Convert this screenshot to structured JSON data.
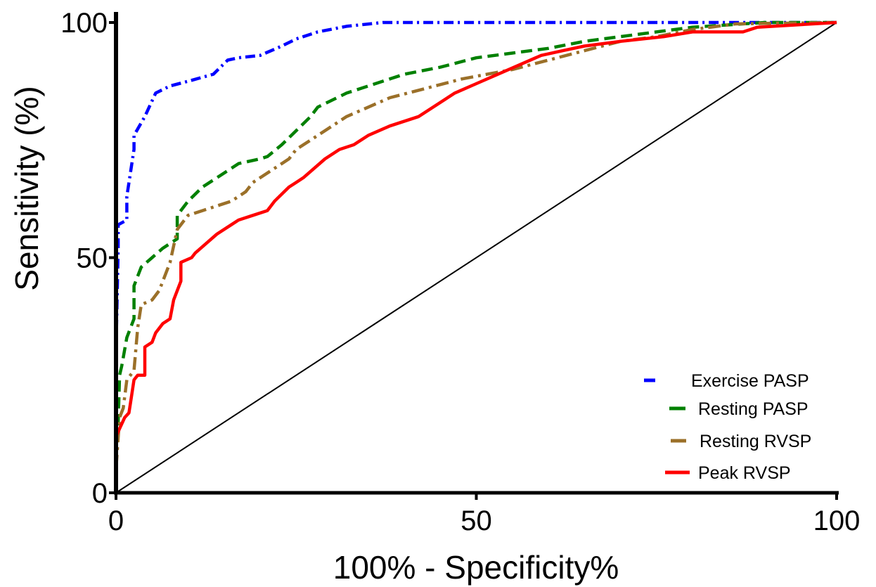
{
  "chart_data": {
    "type": "line",
    "title": "",
    "xlabel": "100% - Specificity%",
    "ylabel": "Sensitivity (%)",
    "xlim": [
      0,
      100
    ],
    "ylim": [
      0,
      100
    ],
    "x_ticks": [
      "0",
      "50",
      "100"
    ],
    "y_ticks": [
      "0",
      "50",
      "100"
    ],
    "grid": false,
    "legend_position": "bottom-right",
    "reference_line": {
      "x": [
        0,
        100
      ],
      "y": [
        0,
        100
      ],
      "color": "#000000"
    },
    "series": [
      {
        "name": "Exercise PASP",
        "color": "#0000ff",
        "style": "dash-dot",
        "x": [
          0,
          0,
          0.3,
          0.3,
          1.5,
          1.5,
          2.5,
          2.5,
          4,
          5.5,
          7.5,
          10,
          13.5,
          15.5,
          17,
          20,
          23,
          25,
          28,
          32,
          37,
          40,
          45,
          50,
          55,
          60,
          65,
          70,
          75,
          80,
          90,
          100
        ],
        "y": [
          0,
          30,
          52,
          57,
          58,
          63,
          73,
          76,
          80,
          85,
          86.5,
          87.5,
          89,
          92,
          92.5,
          93,
          95,
          96.5,
          98,
          99.2,
          100,
          100,
          100,
          100,
          100,
          100,
          100,
          100,
          100,
          100,
          100,
          100
        ]
      },
      {
        "name": "Resting PASP",
        "color": "#008000",
        "style": "dash",
        "x": [
          0,
          0,
          0.3,
          0.5,
          0.8,
          1.5,
          2.5,
          2.5,
          3.5,
          5,
          6.5,
          8.5,
          8.5,
          10,
          12,
          14,
          17,
          20,
          21,
          23,
          25,
          27,
          28,
          32,
          36,
          40,
          45,
          50,
          55,
          60,
          65,
          70,
          75,
          80,
          90,
          100
        ],
        "y": [
          0,
          8,
          15,
          25,
          27,
          33,
          37,
          44,
          48,
          50,
          52,
          54,
          59,
          62,
          65,
          67,
          70,
          71,
          71.5,
          74,
          77,
          80,
          82,
          85,
          87,
          89,
          90.5,
          92.5,
          93.5,
          94.5,
          96,
          97,
          98,
          99,
          100,
          100
        ]
      },
      {
        "name": "Resting RVSP",
        "color": "#9b7029",
        "style": "long-dash-dot",
        "x": [
          0,
          0,
          0.5,
          1,
          1.5,
          2.5,
          3,
          3.5,
          5,
          6,
          7.5,
          8.5,
          10,
          12,
          14,
          16,
          18,
          19,
          21,
          23,
          24,
          25,
          27,
          29,
          32,
          35,
          38,
          43,
          48,
          55,
          60,
          65,
          70,
          75,
          80,
          86,
          90,
          100
        ],
        "y": [
          0,
          5,
          16,
          18,
          24,
          26,
          35,
          40,
          41,
          43,
          49,
          56,
          59,
          60,
          61,
          62,
          64,
          66,
          68,
          70,
          71,
          73,
          75,
          77,
          80,
          82,
          84,
          86,
          88,
          90,
          92,
          94,
          96,
          97,
          98.5,
          99.7,
          99.8,
          100
        ]
      },
      {
        "name": "Peak RVSP",
        "color": "#ff0000",
        "style": "solid",
        "x": [
          0,
          0,
          0.3,
          1.2,
          1.8,
          2,
          2.5,
          3,
          4,
          4,
          5,
          5.5,
          6.5,
          7.5,
          8,
          9,
          9,
          10.5,
          11,
          12.5,
          14,
          16,
          17,
          19,
          21,
          22,
          24,
          25,
          26,
          29,
          31,
          33,
          35,
          38,
          42,
          45,
          47,
          50,
          53,
          56,
          59,
          62,
          65,
          70,
          76,
          80,
          87,
          89,
          100
        ],
        "y": [
          0,
          12,
          13,
          16,
          17,
          19,
          24,
          25,
          25,
          31,
          32,
          34,
          36,
          37,
          41,
          45,
          49,
          50,
          51,
          53,
          55,
          57,
          58,
          59,
          60,
          62,
          65,
          66,
          67,
          71,
          73,
          74,
          76,
          78,
          80,
          83,
          85,
          87,
          89,
          91,
          93,
          94,
          95,
          96,
          97,
          98,
          98,
          99,
          100
        ]
      }
    ]
  }
}
